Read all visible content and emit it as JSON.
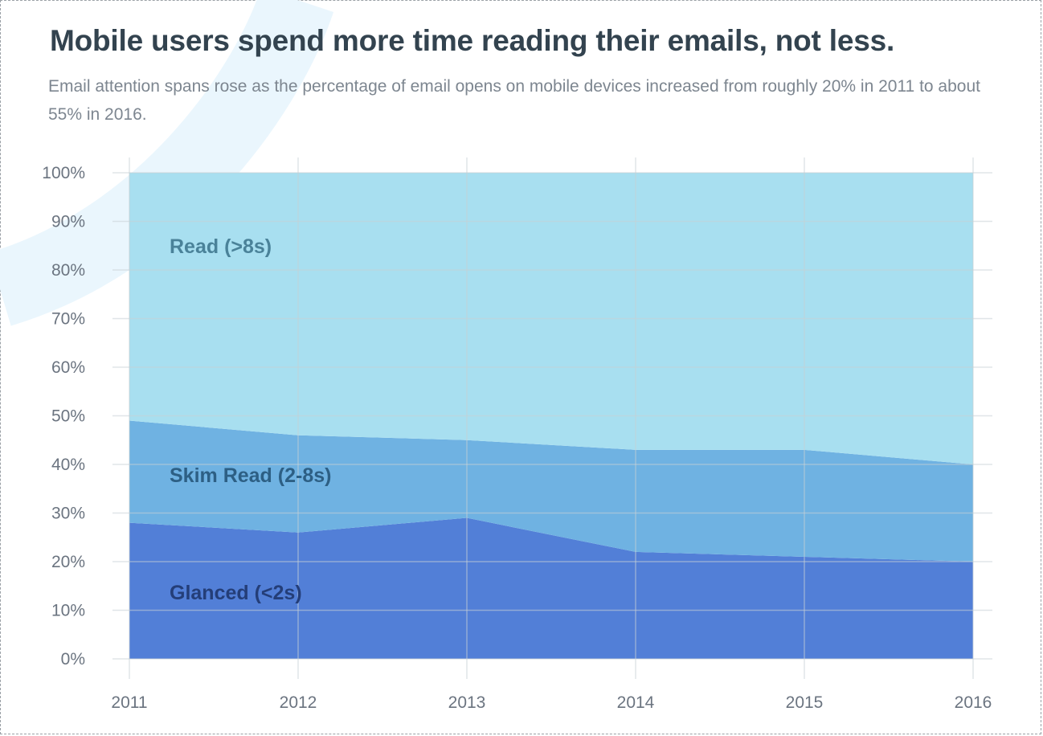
{
  "header": {
    "title": "Mobile users spend more time reading their emails, not less.",
    "subtitle": "Email attention spans rose as the percentage of email opens on mobile devices increased from roughly 20% in 2011 to about 55% in 2016."
  },
  "chart_data": {
    "type": "area",
    "stacked": true,
    "categories": [
      "2011",
      "2012",
      "2013",
      "2014",
      "2015",
      "2016"
    ],
    "series": [
      {
        "name": "Glanced (<2s)",
        "values": [
          28,
          26,
          29,
          22,
          21,
          20
        ],
        "color": "#527fd7",
        "label_color": "#243e78"
      },
      {
        "name": "Skim Read (2-8s)",
        "values": [
          21,
          20,
          16,
          21,
          22,
          20
        ],
        "color": "#6fb2e2",
        "label_color": "#2d5f84"
      },
      {
        "name": "Read (>8s)",
        "values": [
          51,
          54,
          55,
          57,
          57,
          60
        ],
        "color": "#a8dff0",
        "label_color": "#4a8299"
      }
    ],
    "ylim": [
      0,
      100
    ],
    "yticks": [
      "0%",
      "10%",
      "20%",
      "30%",
      "40%",
      "50%",
      "60%",
      "70%",
      "80%",
      "90%",
      "100%"
    ],
    "grid": true,
    "legend": "inline labels",
    "xlabel": "",
    "ylabel": ""
  }
}
